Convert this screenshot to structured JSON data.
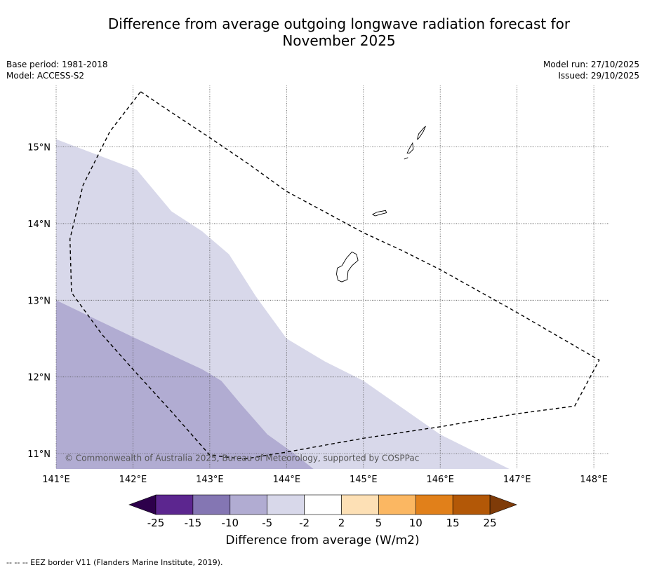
{
  "title": {
    "line1": "Difference from average outgoing longwave radiation forecast for",
    "line2": "November 2025"
  },
  "meta_left": {
    "base_period": "Base period: 1981-2018",
    "model": "Model: ACCESS-S2"
  },
  "meta_right": {
    "model_run": "Model run: 27/10/2025",
    "issued": "Issued: 29/10/2025"
  },
  "map": {
    "lon_range": [
      141,
      148.2
    ],
    "lat_range": [
      10.8,
      15.8
    ],
    "lon_ticks": [
      141,
      142,
      143,
      144,
      145,
      146,
      147,
      148
    ],
    "lon_labels": [
      "141°E",
      "142°E",
      "143°E",
      "144°E",
      "145°E",
      "146°E",
      "147°E",
      "148°E"
    ],
    "lat_ticks": [
      15,
      14,
      13,
      12,
      11
    ],
    "lat_labels": [
      "15°N",
      "14°N",
      "13°N",
      "12°N",
      "11°N"
    ],
    "copyright": "© Commonwealth of Australia 2025, Bureau of Meteorology, supported by COSPPac",
    "anomaly_regions": [
      {
        "category": "-5 to -2",
        "color": "#d8d8ea",
        "polygon": [
          [
            141.0,
            15.1
          ],
          [
            142.05,
            14.7
          ],
          [
            142.5,
            14.16
          ],
          [
            142.9,
            13.9
          ],
          [
            143.25,
            13.6
          ],
          [
            143.6,
            13.05
          ],
          [
            144.0,
            12.5
          ],
          [
            144.5,
            12.2
          ],
          [
            145.0,
            11.95
          ],
          [
            145.5,
            11.6
          ],
          [
            146.0,
            11.25
          ],
          [
            146.5,
            11.0
          ],
          [
            146.9,
            10.8
          ],
          [
            141.0,
            10.8
          ]
        ]
      },
      {
        "category": "-10 to -5",
        "color": "#b1acd2",
        "polygon": [
          [
            141.0,
            13.0
          ],
          [
            142.0,
            12.52
          ],
          [
            142.9,
            12.1
          ],
          [
            143.15,
            11.95
          ],
          [
            143.4,
            11.65
          ],
          [
            143.75,
            11.25
          ],
          [
            144.1,
            11.0
          ],
          [
            144.35,
            10.8
          ],
          [
            141.0,
            10.8
          ]
        ]
      }
    ],
    "eez_border": [
      [
        142.1,
        15.72
      ],
      [
        142.5,
        15.45
      ],
      [
        143.0,
        15.12
      ],
      [
        143.5,
        14.78
      ],
      [
        144.0,
        14.42
      ],
      [
        144.5,
        14.15
      ],
      [
        145.0,
        13.88
      ],
      [
        145.5,
        13.65
      ],
      [
        146.0,
        13.4
      ],
      [
        146.5,
        13.12
      ],
      [
        147.0,
        12.84
      ],
      [
        147.5,
        12.55
      ],
      [
        148.07,
        12.22
      ],
      [
        147.75,
        11.62
      ],
      [
        147.0,
        11.52
      ],
      [
        146.0,
        11.35
      ],
      [
        145.0,
        11.2
      ],
      [
        144.0,
        11.02
      ],
      [
        143.45,
        10.93
      ],
      [
        143.0,
        10.98
      ],
      [
        142.5,
        11.55
      ],
      [
        142.0,
        12.1
      ],
      [
        141.6,
        12.55
      ],
      [
        141.2,
        13.1
      ],
      [
        141.18,
        13.8
      ],
      [
        141.35,
        14.5
      ],
      [
        141.7,
        15.2
      ],
      [
        142.1,
        15.72
      ]
    ],
    "islands": [
      {
        "name": "Guam",
        "outline": [
          [
            144.66,
            13.42
          ],
          [
            144.72,
            13.45
          ],
          [
            144.78,
            13.55
          ],
          [
            144.85,
            13.63
          ],
          [
            144.91,
            13.6
          ],
          [
            144.93,
            13.52
          ],
          [
            144.85,
            13.45
          ],
          [
            144.8,
            13.38
          ],
          [
            144.79,
            13.27
          ],
          [
            144.72,
            13.24
          ],
          [
            144.67,
            13.26
          ],
          [
            144.65,
            13.34
          ]
        ]
      },
      {
        "name": "Rota",
        "outline": [
          [
            145.12,
            14.12
          ],
          [
            145.18,
            14.15
          ],
          [
            145.29,
            14.17
          ],
          [
            145.3,
            14.14
          ],
          [
            145.22,
            14.12
          ],
          [
            145.15,
            14.1
          ]
        ]
      },
      {
        "name": "Tinian",
        "outline": [
          [
            145.57,
            14.92
          ],
          [
            145.6,
            14.98
          ],
          [
            145.64,
            15.05
          ],
          [
            145.65,
            14.97
          ],
          [
            145.6,
            14.92
          ]
        ]
      },
      {
        "name": "Saipan",
        "outline": [
          [
            145.7,
            15.1
          ],
          [
            145.72,
            15.17
          ],
          [
            145.78,
            15.24
          ],
          [
            145.81,
            15.27
          ],
          [
            145.78,
            15.2
          ],
          [
            145.74,
            15.14
          ],
          [
            145.71,
            15.1
          ]
        ]
      },
      {
        "name": "Aguijan",
        "outline": [
          [
            145.53,
            14.84
          ],
          [
            145.58,
            14.86
          ]
        ]
      }
    ]
  },
  "colorbar": {
    "label": "Difference from average (W/m2)",
    "boundaries": [
      "-25",
      "-15",
      "-10",
      "-5",
      "-2",
      "2",
      "5",
      "10",
      "15",
      "25"
    ],
    "colors": [
      "#5c268f",
      "#8476b3",
      "#b1acd2",
      "#d8d8ea",
      "#ffffff",
      "#fde0b5",
      "#fbb762",
      "#e1801a",
      "#b35807"
    ],
    "extend_low_color": "#2d004b",
    "extend_high_color": "#7f3b08"
  },
  "footnote": "--  --  -- EEZ border V11 (Flanders Marine Institute, 2019)."
}
